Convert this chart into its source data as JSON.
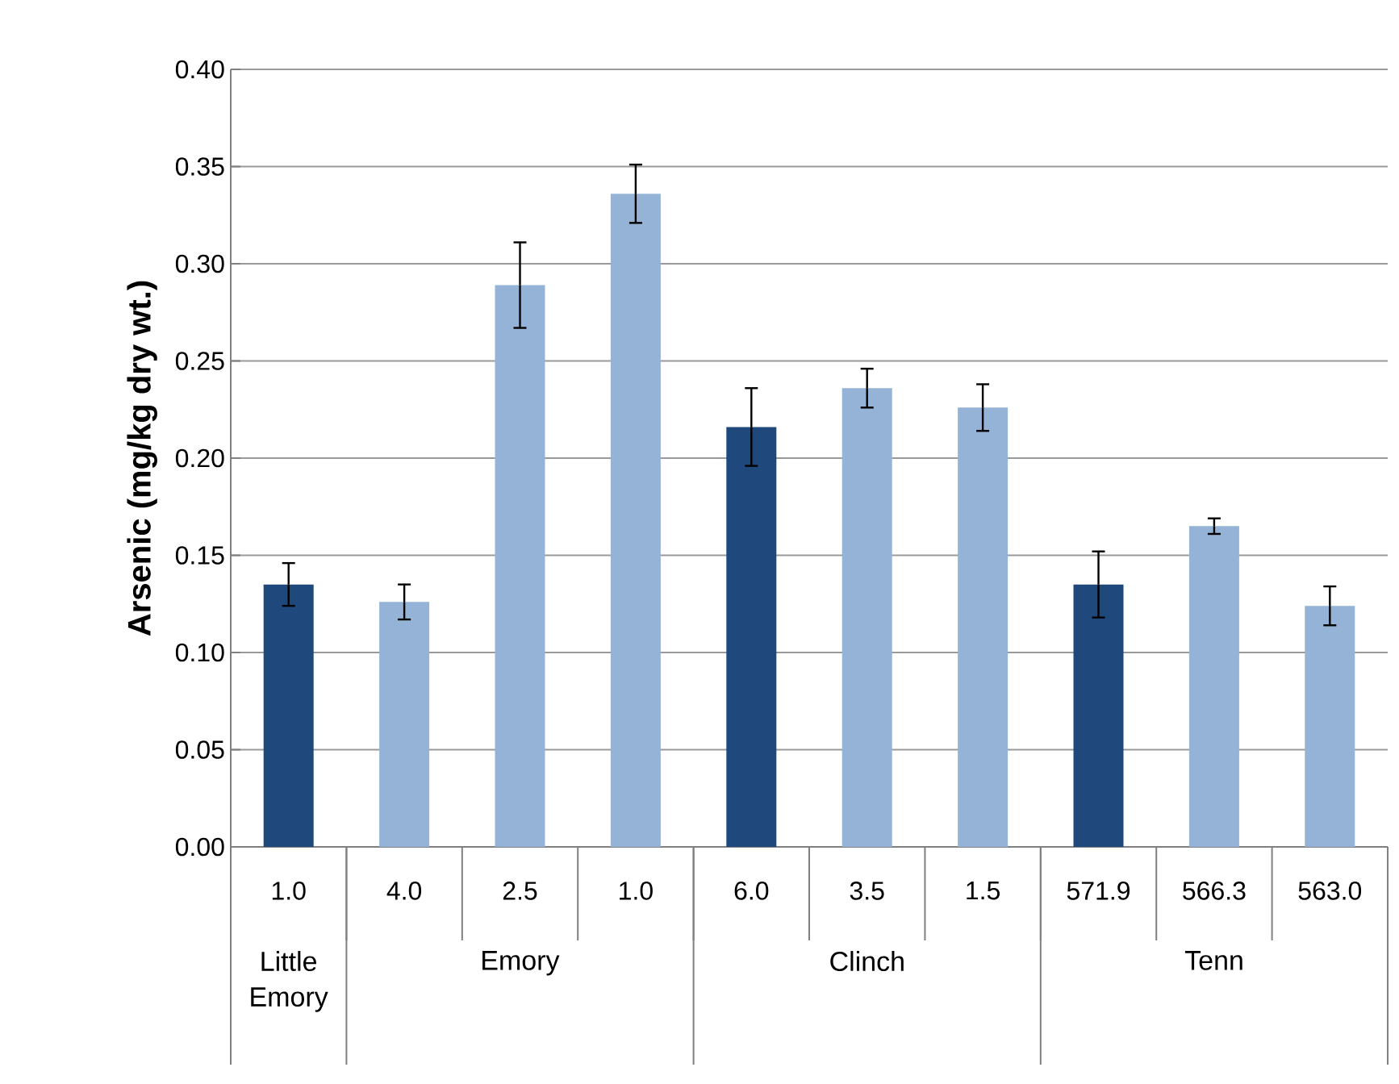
{
  "chart_data": {
    "type": "bar",
    "ylabel": "Arsenic  (mg/kg dry wt.)",
    "categories": [
      "1.0",
      "4.0",
      "2.5",
      "1.0",
      "6.0",
      "3.5",
      "1.5",
      "571.9",
      "566.3",
      "563.0"
    ],
    "values": [
      0.135,
      0.126,
      0.289,
      0.336,
      0.216,
      0.236,
      0.226,
      0.135,
      0.165,
      0.124
    ],
    "errors": [
      0.011,
      0.009,
      0.022,
      0.015,
      0.02,
      0.01,
      0.012,
      0.017,
      0.004,
      0.01
    ],
    "colors": [
      "#1f497d",
      "#95b3d7",
      "#95b3d7",
      "#95b3d7",
      "#1f497d",
      "#95b3d7",
      "#95b3d7",
      "#1f497d",
      "#95b3d7",
      "#95b3d7"
    ],
    "ylim": [
      0,
      0.4
    ],
    "yticks": [
      {
        "value": 0,
        "label": "0.00"
      },
      {
        "value": 0.05,
        "label": "0.05"
      },
      {
        "value": 0.1,
        "label": "0.10"
      },
      {
        "value": 0.15,
        "label": "0.15"
      },
      {
        "value": 0.2,
        "label": "0.20"
      },
      {
        "value": 0.25,
        "label": "0.25"
      },
      {
        "value": 0.3,
        "label": "0.30"
      },
      {
        "value": 0.35,
        "label": "0.35"
      },
      {
        "value": 0.4,
        "label": "0.40"
      }
    ],
    "grid": "y",
    "annotations": [
      "Little Emory",
      "Emory",
      "Clinch",
      "Tenn"
    ]
  }
}
